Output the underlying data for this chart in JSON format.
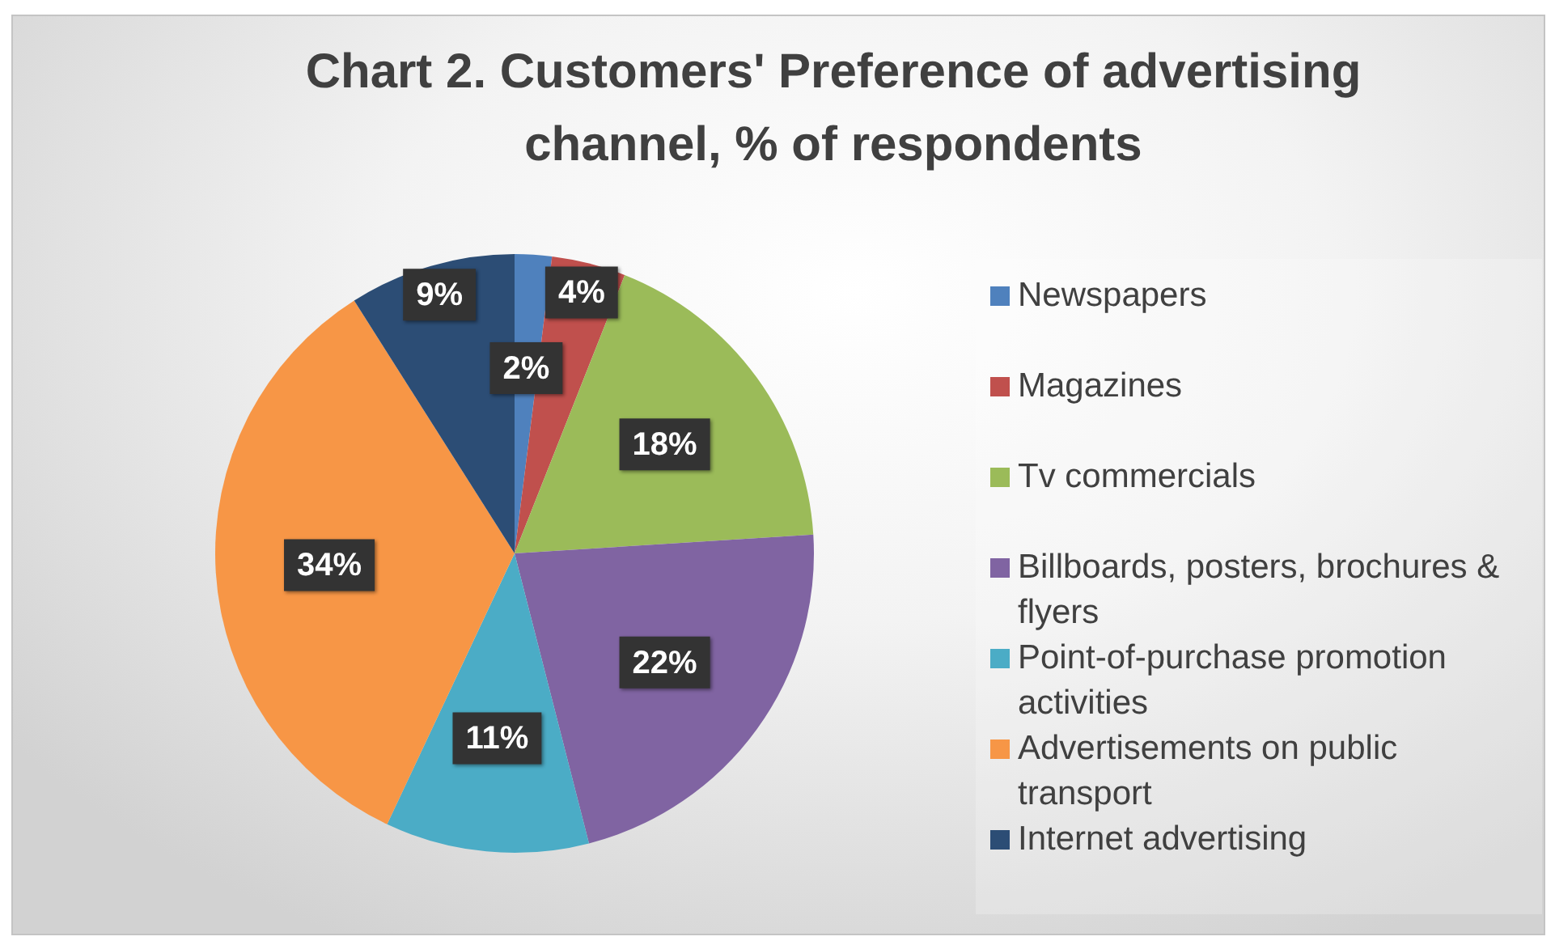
{
  "chart_data": {
    "type": "pie",
    "title": "Chart 2. Customers' Preference of advertising channel, % of respondents",
    "categories": [
      "Newspapers",
      "Magazines",
      "Tv commercials",
      "Billboards, posters, brochures & flyers",
      "Point-of-purchase promotion activities",
      "Advertisements on public transport",
      "Internet advertising"
    ],
    "values": [
      2,
      4,
      18,
      22,
      11,
      34,
      9
    ],
    "colors": [
      "#4f81bd",
      "#c0504d",
      "#9bbb59",
      "#8064a2",
      "#4bacc6",
      "#f79646",
      "#2c4d75"
    ],
    "value_labels": [
      "2%",
      "4%",
      "18%",
      "22%",
      "11%",
      "34%",
      "9%"
    ],
    "legend": "right"
  }
}
